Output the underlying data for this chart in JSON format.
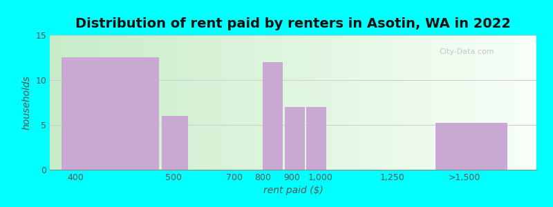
{
  "title": "Distribution of rent paid by renters in Asotin, WA in 2022",
  "xlabel": "rent paid ($)",
  "ylabel": "households",
  "bar_lefts": [
    100,
    450,
    750,
    800,
    875,
    950,
    1100,
    1400
  ],
  "bar_widths": [
    340,
    90,
    0,
    70,
    70,
    70,
    0,
    250
  ],
  "bar_heights": [
    12.5,
    6.0,
    0,
    12.0,
    7.0,
    7.0,
    0,
    5.2
  ],
  "bar_color": "#C9A8D4",
  "xtick_positions": [
    150,
    490,
    700,
    800,
    900,
    1000,
    1250,
    1500
  ],
  "xtick_labels": [
    "400",
    "500",
    "700",
    "800",
    "900",
    "1,000",
    "1,250",
    ">1,500"
  ],
  "xlim": [
    60,
    1750
  ],
  "ylim": [
    0,
    15
  ],
  "yticks": [
    0,
    5,
    10,
    15
  ],
  "background_outer": "#00FFFF",
  "background_inner_top": "#f0faf0",
  "background_inner_bottom": "#e0f5e0",
  "title_fontsize": 14,
  "axis_label_fontsize": 10,
  "tick_fontsize": 9
}
